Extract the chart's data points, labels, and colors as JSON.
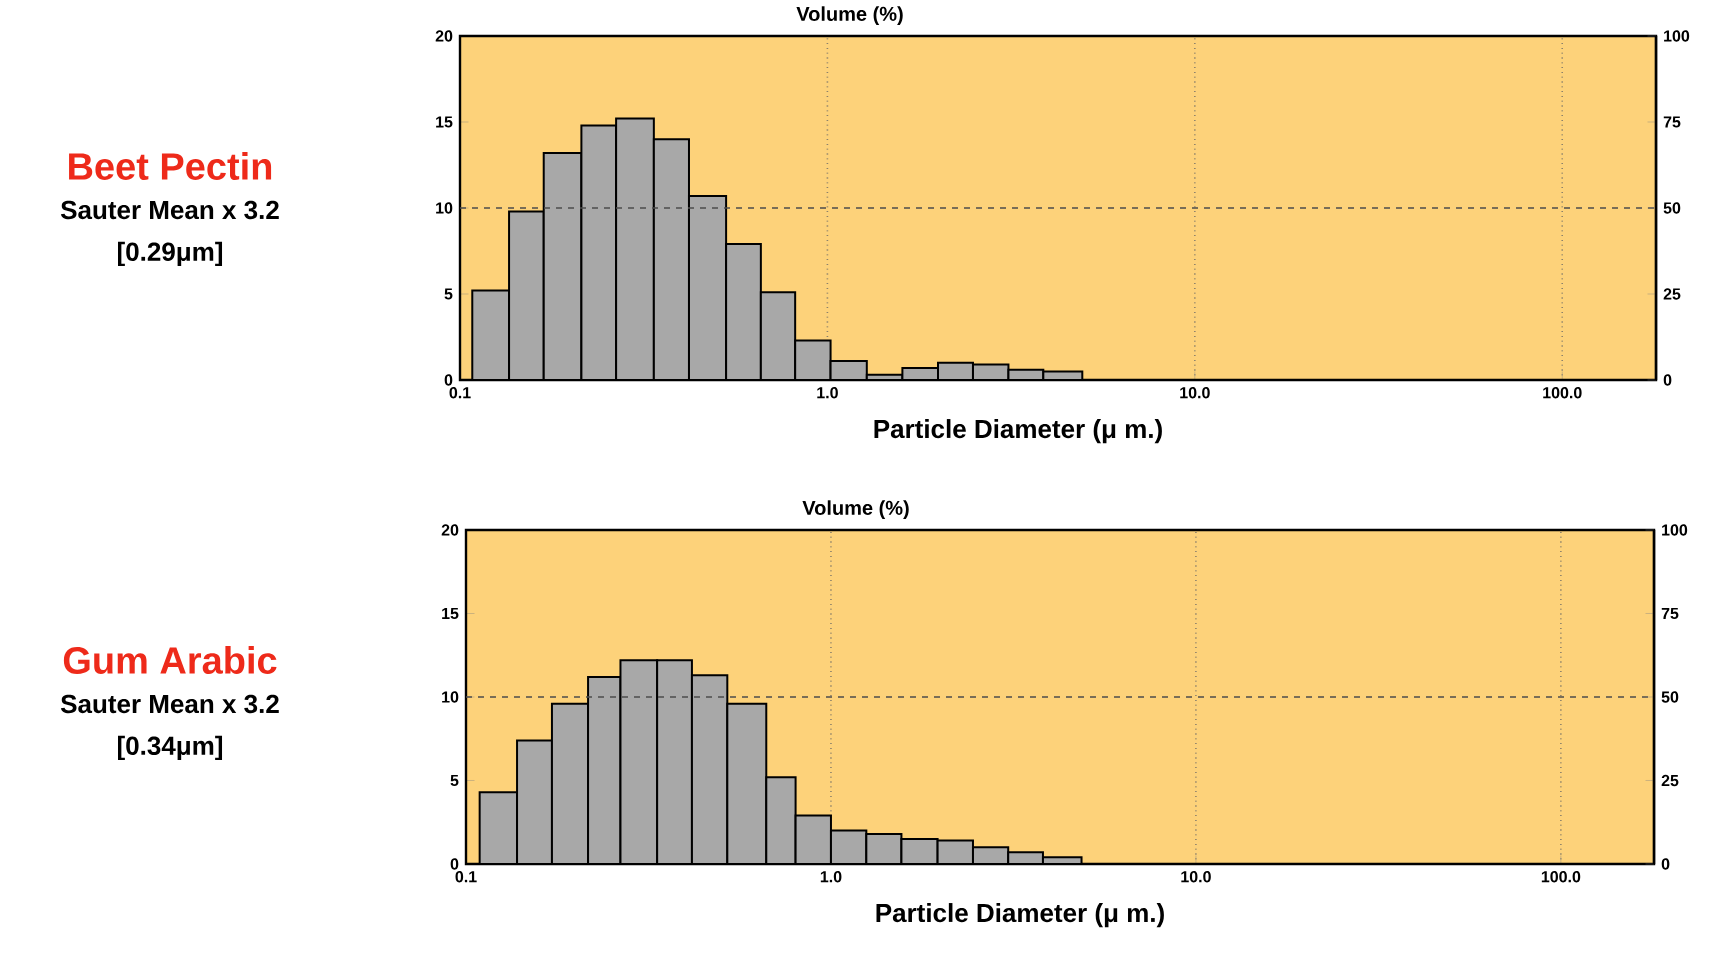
{
  "chart_data": [
    {
      "type": "histogram",
      "title": "Beet Pectin",
      "annotations": [
        "Sauter Mean x 3.2",
        "[0.29μm]"
      ],
      "ylabel": "Volume (%)",
      "xlabel": "Particle Diameter (μ m.)",
      "log": "x",
      "color": "#a8a8a8",
      "bins": [
        0.108,
        0.136,
        0.169,
        0.214,
        0.266,
        0.337,
        0.42,
        0.53,
        0.659,
        0.817,
        1.02,
        1.28,
        1.6,
        2.0,
        2.49,
        3.11,
        3.87,
        4.94
      ],
      "values": [
        5.2,
        9.8,
        13.2,
        14.8,
        15.2,
        14.0,
        10.7,
        7.9,
        5.1,
        2.3,
        1.1,
        0.3,
        0.7,
        1.0,
        0.9,
        0.6,
        0.5
      ],
      "xlim": [
        0.1,
        180
      ],
      "xticks": [
        {
          "value": 0.1,
          "label": "0.1"
        },
        {
          "value": 1,
          "label": "1.0"
        },
        {
          "value": 10,
          "label": "10.0"
        },
        {
          "value": 100,
          "label": "100.0"
        }
      ],
      "ylim": [
        0,
        20
      ],
      "yticks": [
        0,
        5,
        10,
        15,
        20
      ],
      "y2lim": [
        0,
        100
      ],
      "y2ticks": [
        0,
        25,
        50,
        75,
        100
      ],
      "grid": "x",
      "ref_lines": [
        {
          "axis": "y",
          "value": 10,
          "line_style": "dashed"
        }
      ]
    },
    {
      "type": "histogram",
      "title": "Gum Arabic",
      "annotations": [
        "Sauter Mean x 3.2",
        "[0.34μm]"
      ],
      "ylabel": "Volume (%)",
      "xlabel": "Particle Diameter (μ m.)",
      "log": "x",
      "color": "#a8a8a8",
      "bins": [
        0.109,
        0.138,
        0.172,
        0.216,
        0.265,
        0.334,
        0.416,
        0.52,
        0.665,
        0.8,
        1.0,
        1.25,
        1.56,
        1.96,
        2.45,
        3.06,
        3.81,
        4.86
      ],
      "values": [
        4.3,
        7.4,
        9.6,
        11.2,
        12.2,
        12.2,
        11.3,
        9.6,
        5.2,
        2.9,
        2.0,
        1.8,
        1.5,
        1.4,
        1.0,
        0.7,
        0.4
      ],
      "xlim": [
        0.1,
        180
      ],
      "xticks": [
        {
          "value": 0.1,
          "label": "0.1"
        },
        {
          "value": 1,
          "label": "1.0"
        },
        {
          "value": 10,
          "label": "10.0"
        },
        {
          "value": 100,
          "label": "100.0"
        }
      ],
      "ylim": [
        0,
        20
      ],
      "yticks": [
        0,
        5,
        10,
        15,
        20
      ],
      "y2lim": [
        0,
        100
      ],
      "y2ticks": [
        0,
        25,
        50,
        75,
        100
      ],
      "grid": "x",
      "ref_lines": [
        {
          "axis": "y",
          "value": 10,
          "line_style": "dashed"
        }
      ]
    }
  ]
}
